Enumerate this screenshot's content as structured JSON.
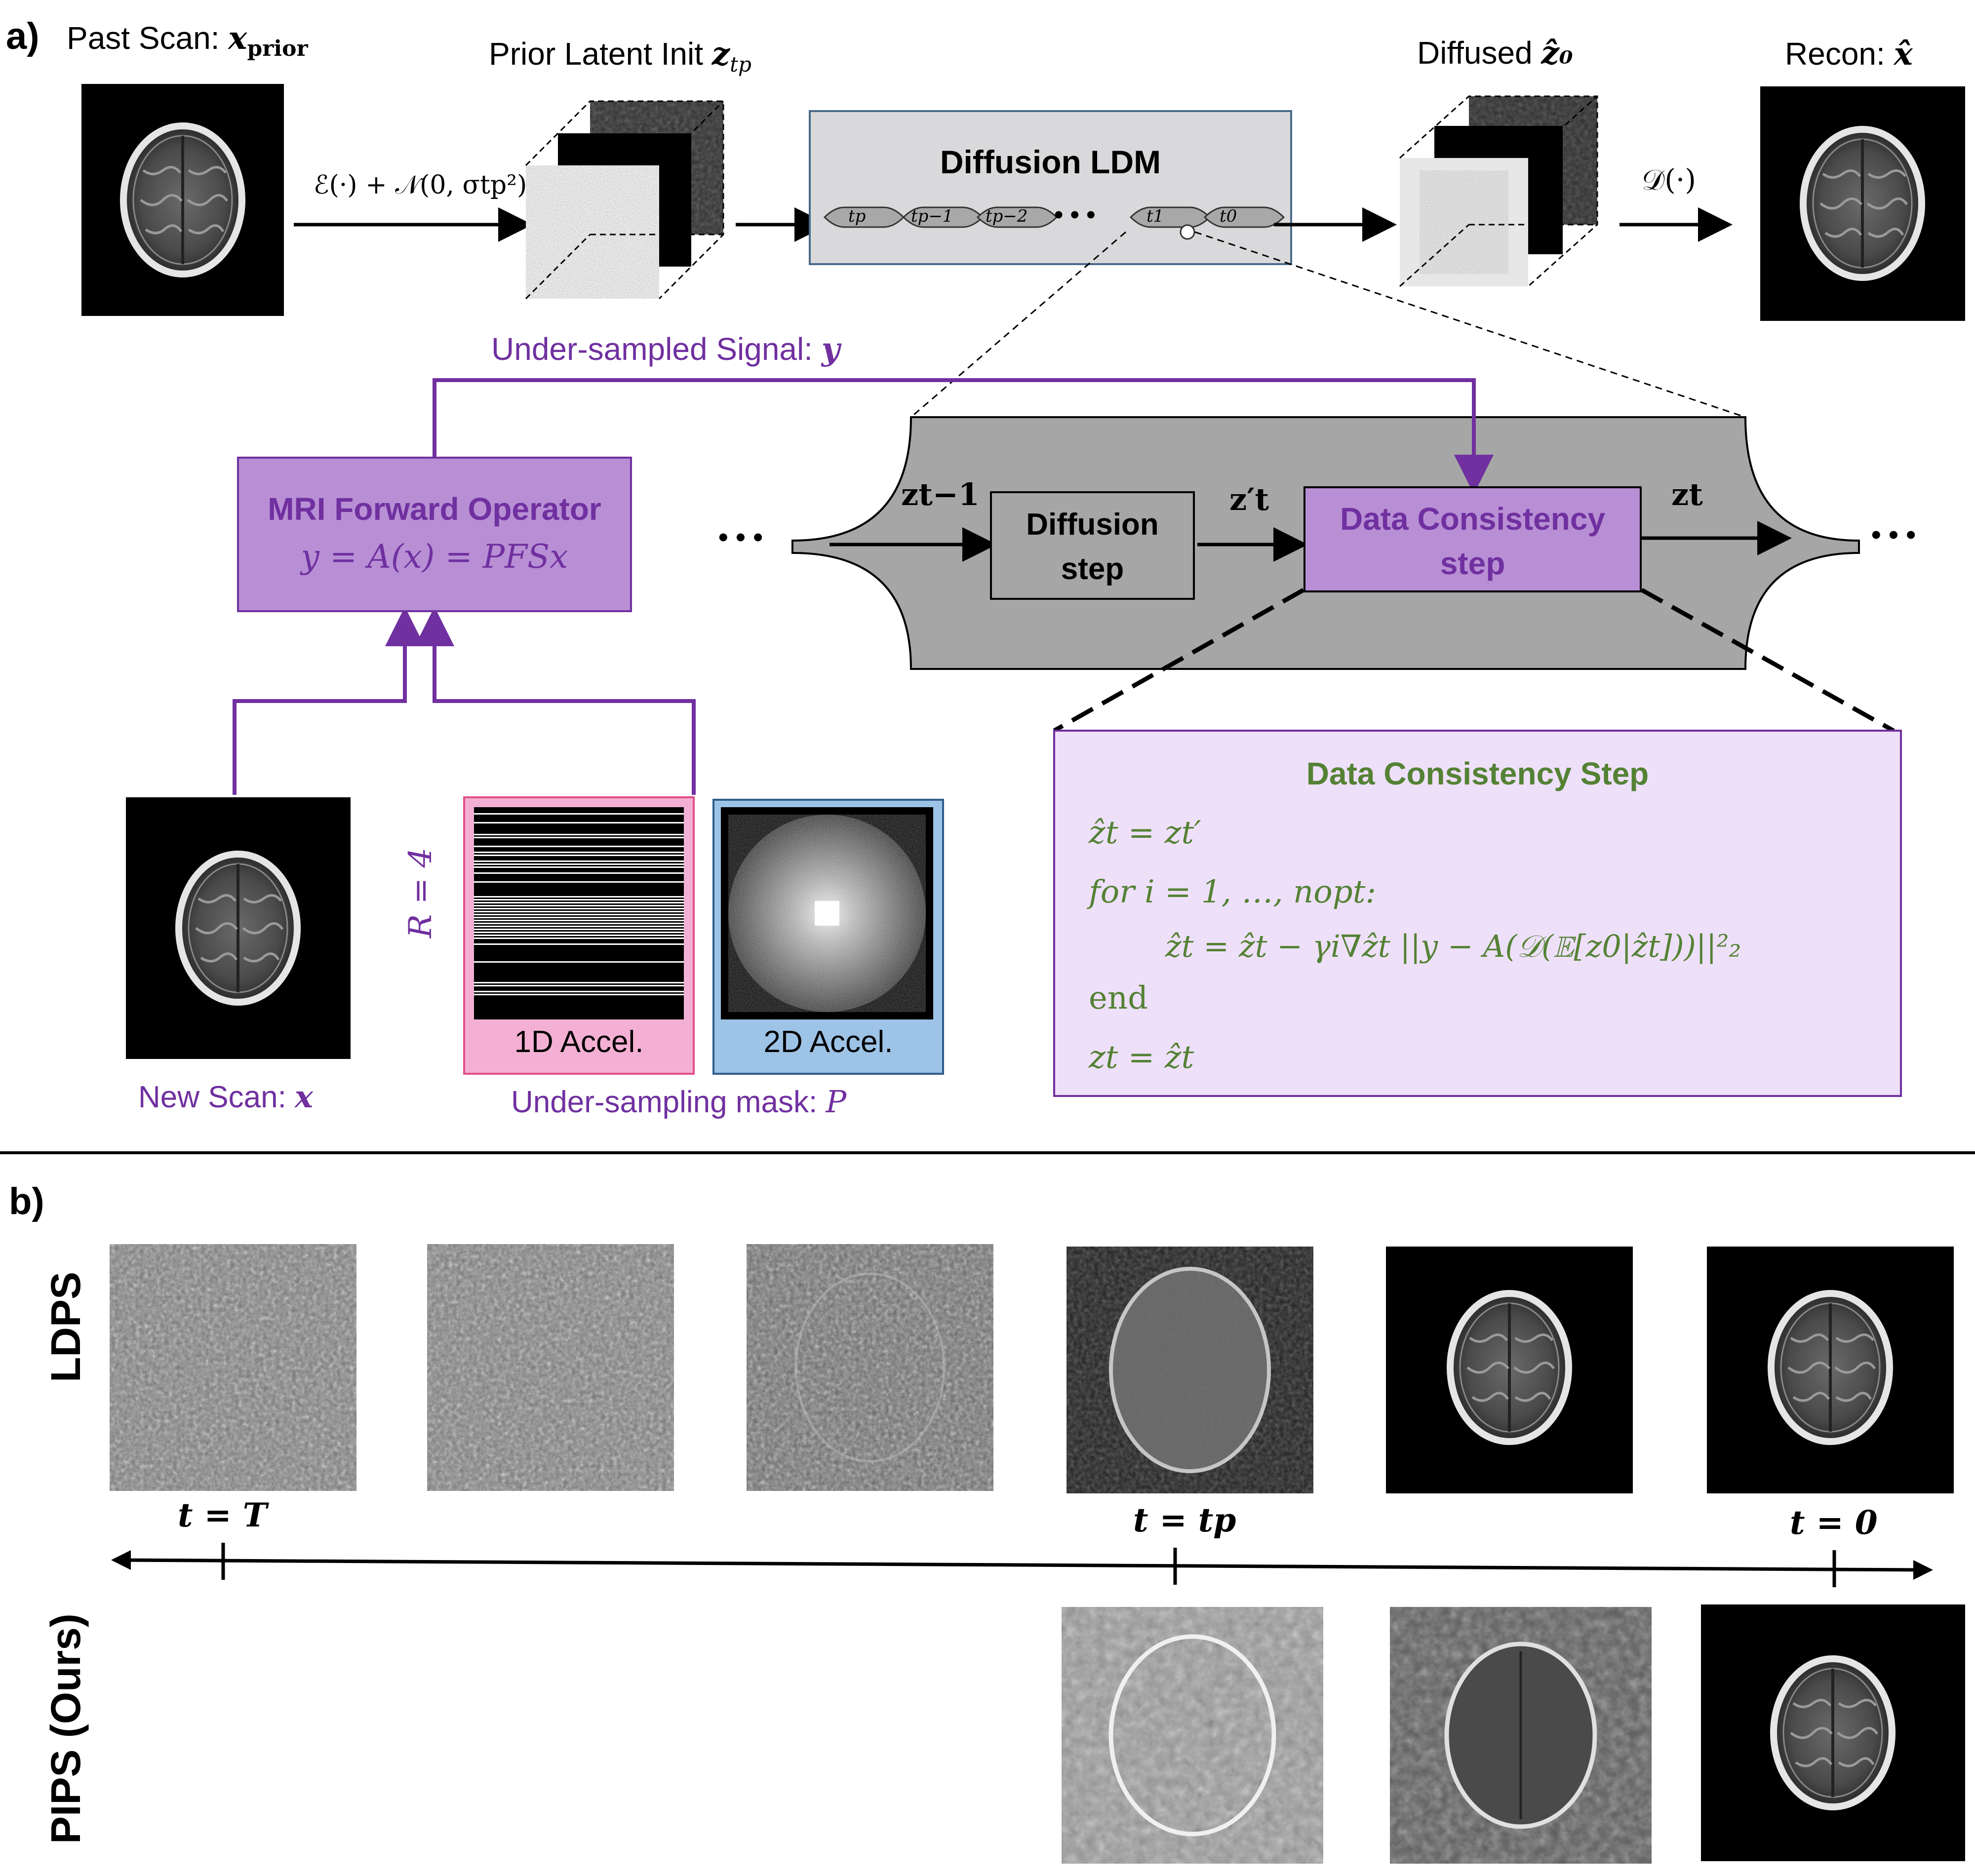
{
  "panel_a": {
    "label": "a)",
    "past_scan": "Past Scan: ",
    "past_scan_var": "x",
    "past_scan_sub": "prior",
    "prior_latent": "Prior Latent Init ",
    "prior_latent_var": "z",
    "prior_latent_sub": "tp",
    "encoder_label": "ℰ(·) + 𝒩(0, σtp²)",
    "diffusion_ldm": "Diffusion LDM",
    "timesteps": [
      "tp",
      "tp−1",
      "tp−2",
      "t1",
      "t0"
    ],
    "ellipsis": "• • •",
    "diffused": "Diffused ",
    "diffused_var": "ẑ₀",
    "decoder_label": "𝒟(·)",
    "recon": "Recon: ",
    "recon_var": "x̂",
    "under_sampled_signal": "Under-sampled Signal: ",
    "signal_var": "y",
    "mri_title": "MRI Forward Operator",
    "mri_eq": "y = A(x) = PFSx",
    "z_prev": "zt−1",
    "diffusion_step_1": "Diffusion",
    "diffusion_step_2": "step",
    "z_prime": "z′t",
    "dc_step_1": "Data Consistency",
    "dc_step_2": "step",
    "z_t": "zt",
    "dots": "• • •",
    "new_scan": "New Scan: ",
    "new_scan_var": "x",
    "r_label": "R = 4",
    "accel_1d": "1D Accel.",
    "accel_2d": "2D Accel.",
    "mask_label": "Under-sampling mask: ",
    "mask_var": "P",
    "dcs_title": "Data Consistency Step",
    "dcs_line1": "ẑt = zt′",
    "dcs_line2": "for i = 1, …, nopt:",
    "dcs_line3": "ẑt = ẑt − γi∇ẑt ||y − A(𝒟(𝔼[z0|ẑt]))||²₂",
    "dcs_line4": "end",
    "dcs_line5": "zt = ẑt"
  },
  "panel_b": {
    "label": "b)",
    "row1_label": "LDPS",
    "row2_label": "PIPS (Ours)",
    "tick_T": "t = T",
    "tick_tp": "t = tp",
    "tick_0": "t = 0"
  },
  "colors": {
    "purple": "#7030a0",
    "green": "#548235",
    "mri_box_fill": "#b88fd4",
    "dc_panel_fill": "#efe0fa",
    "gray_panel": "#a6a6a6",
    "ldm_fill": "#d9d9db",
    "pink": "#f4b0d4",
    "blue": "#9dc3e6"
  }
}
